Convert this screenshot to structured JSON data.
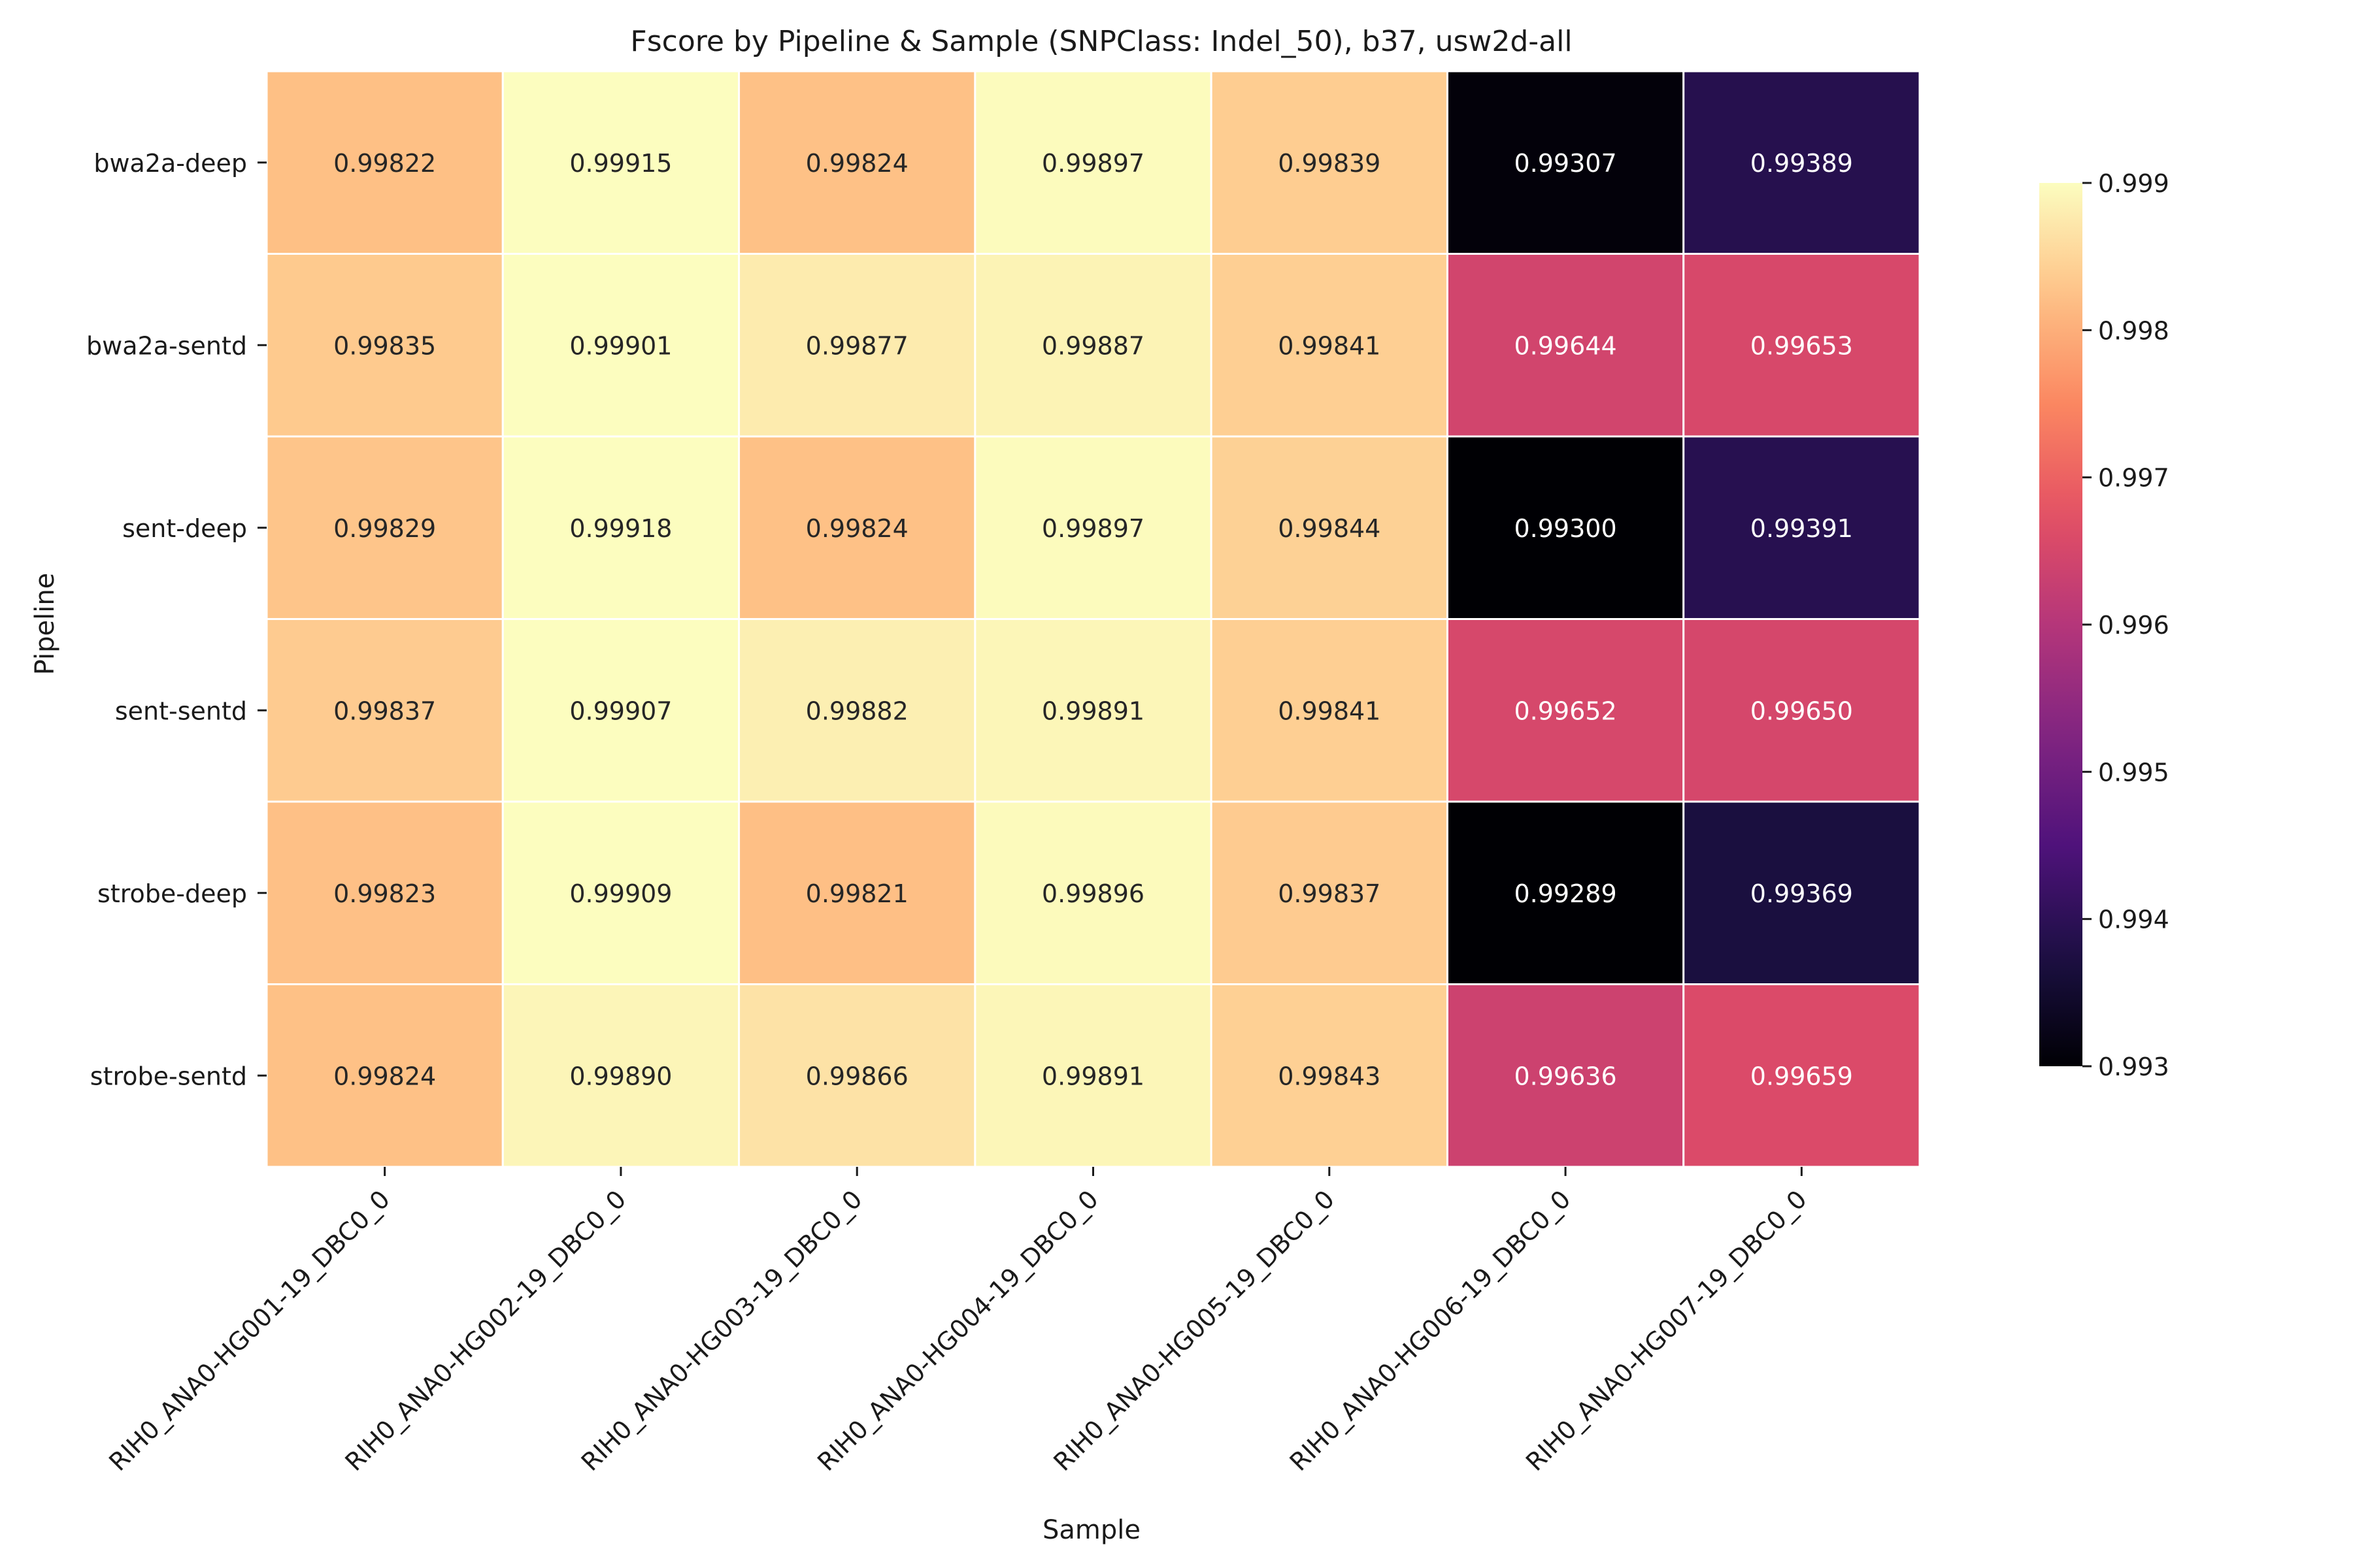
{
  "chart_data": {
    "type": "heatmap",
    "title": "Fscore by Pipeline & Sample (SNPClass: Indel_50), b37, usw2d-all",
    "xlabel": "Sample",
    "ylabel": "Pipeline",
    "x_categories": [
      "RIH0_ANA0-HG001-19_DBC0_0",
      "RIH0_ANA0-HG002-19_DBC0_0",
      "RIH0_ANA0-HG003-19_DBC0_0",
      "RIH0_ANA0-HG004-19_DBC0_0",
      "RIH0_ANA0-HG005-19_DBC0_0",
      "RIH0_ANA0-HG006-19_DBC0_0",
      "RIH0_ANA0-HG007-19_DBC0_0"
    ],
    "y_categories": [
      "bwa2a-deep",
      "bwa2a-sentd",
      "sent-deep",
      "sent-sentd",
      "strobe-deep",
      "strobe-sentd"
    ],
    "values": [
      [
        0.99822,
        0.99915,
        0.99824,
        0.99897,
        0.99839,
        0.99307,
        0.99389
      ],
      [
        0.99835,
        0.99901,
        0.99877,
        0.99887,
        0.99841,
        0.99644,
        0.99653
      ],
      [
        0.99829,
        0.99918,
        0.99824,
        0.99897,
        0.99844,
        0.993,
        0.99391
      ],
      [
        0.99837,
        0.99907,
        0.99882,
        0.99891,
        0.99841,
        0.99652,
        0.9965
      ],
      [
        0.99823,
        0.99909,
        0.99821,
        0.99896,
        0.99837,
        0.99289,
        0.99369
      ],
      [
        0.99824,
        0.9989,
        0.99866,
        0.99891,
        0.99843,
        0.99636,
        0.99659
      ]
    ],
    "value_format_decimals": 5,
    "colorscale": "magma",
    "vmin": 0.993,
    "vmax": 0.999,
    "colorbar_ticks": [
      0.999,
      0.998,
      0.997,
      0.996,
      0.995,
      0.994,
      0.993
    ],
    "cell_border_color": "#ffffff",
    "colorbar_position": "right"
  }
}
